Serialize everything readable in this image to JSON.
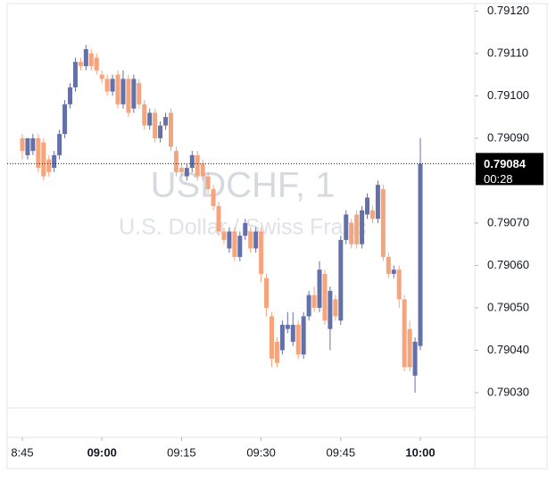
{
  "chart_data": {
    "type": "candlestick",
    "title": "USDCHF, 1",
    "subtitle": "U.S. Dollar / Swiss Franc",
    "categories": [
      "08:45",
      "08:46",
      "08:47",
      "08:48",
      "08:49",
      "08:50",
      "08:51",
      "08:52",
      "08:53",
      "08:54",
      "08:55",
      "08:56",
      "08:57",
      "08:58",
      "08:59",
      "09:00",
      "09:01",
      "09:02",
      "09:03",
      "09:04",
      "09:05",
      "09:06",
      "09:07",
      "09:08",
      "09:09",
      "09:10",
      "09:11",
      "09:12",
      "09:13",
      "09:14",
      "09:15",
      "09:16",
      "09:17",
      "09:18",
      "09:19",
      "09:20",
      "09:21",
      "09:22",
      "09:23",
      "09:24",
      "09:25",
      "09:26",
      "09:27",
      "09:28",
      "09:29",
      "09:30",
      "09:31",
      "09:32",
      "09:33",
      "09:34",
      "09:35",
      "09:36",
      "09:37",
      "09:38",
      "09:39",
      "09:40",
      "09:41",
      "09:42",
      "09:43",
      "09:44",
      "09:45",
      "09:46",
      "09:47",
      "09:48",
      "09:49",
      "09:50",
      "09:51",
      "09:52",
      "09:53",
      "09:54",
      "09:55",
      "09:56",
      "09:57",
      "09:58",
      "09:59",
      "10:00"
    ],
    "open": [
      0.7909,
      0.79086,
      0.79087,
      0.7909,
      0.79089,
      0.79085,
      0.79083,
      0.79086,
      0.79091,
      0.79098,
      0.79102,
      0.79108,
      0.79107,
      0.7911,
      0.79109,
      0.79105,
      0.79104,
      0.79101,
      0.79105,
      0.79098,
      0.79104,
      0.79097,
      0.79103,
      0.79098,
      0.79093,
      0.79096,
      0.7909,
      0.79093,
      0.79096,
      0.79087,
      0.79083,
      0.79081,
      0.79083,
      0.79086,
      0.79084,
      0.79081,
      0.79078,
      0.79074,
      0.79068,
      0.79064,
      0.79068,
      0.79062,
      0.79067,
      0.79068,
      0.79064,
      0.79068,
      0.79057,
      0.79048,
      0.79042,
      0.7904,
      0.79045,
      0.79042,
      0.79046,
      0.79039,
      0.79048,
      0.79053,
      0.7905,
      0.79058,
      0.79045,
      0.79052,
      0.79047,
      0.79066,
      0.7907,
      0.79072,
      0.79065,
      0.79072,
      0.79073,
      0.79071,
      0.79078,
      0.79062,
      0.79058,
      0.79059,
      0.79052,
      0.79045,
      0.79034,
      0.79041
    ],
    "high": [
      0.79091,
      0.7909,
      0.79091,
      0.79091,
      0.7909,
      0.79086,
      0.79087,
      0.79092,
      0.79099,
      0.79103,
      0.79109,
      0.79109,
      0.79112,
      0.79111,
      0.7911,
      0.79106,
      0.79105,
      0.79105,
      0.79106,
      0.79106,
      0.79105,
      0.79105,
      0.79104,
      0.79099,
      0.79097,
      0.79097,
      0.79094,
      0.79096,
      0.79097,
      0.79088,
      0.79084,
      0.79084,
      0.79087,
      0.79087,
      0.79085,
      0.79082,
      0.79079,
      0.79075,
      0.79069,
      0.79069,
      0.79069,
      0.79068,
      0.79071,
      0.79069,
      0.79069,
      0.79069,
      0.79058,
      0.79049,
      0.79043,
      0.79047,
      0.79049,
      0.79049,
      0.79047,
      0.79049,
      0.79054,
      0.79055,
      0.79061,
      0.79059,
      0.79055,
      0.79053,
      0.79067,
      0.79073,
      0.79071,
      0.79073,
      0.79074,
      0.79077,
      0.79074,
      0.7908,
      0.79079,
      0.79063,
      0.7906,
      0.7906,
      0.79053,
      0.79047,
      0.79043,
      0.7909
    ],
    "low": [
      0.79085,
      0.79085,
      0.79086,
      0.79082,
      0.7908,
      0.79081,
      0.79082,
      0.79085,
      0.7909,
      0.79097,
      0.79101,
      0.79106,
      0.79106,
      0.79106,
      0.79105,
      0.79103,
      0.791,
      0.791,
      0.79097,
      0.79097,
      0.79095,
      0.79096,
      0.79097,
      0.79092,
      0.79092,
      0.79089,
      0.79089,
      0.79092,
      0.79087,
      0.79081,
      0.79081,
      0.7908,
      0.79082,
      0.7908,
      0.7908,
      0.79077,
      0.79073,
      0.79067,
      0.79065,
      0.79063,
      0.79061,
      0.79061,
      0.79066,
      0.79063,
      0.79063,
      0.79056,
      0.79048,
      0.79036,
      0.79036,
      0.79039,
      0.79044,
      0.79041,
      0.79038,
      0.79038,
      0.79047,
      0.79049,
      0.79049,
      0.79046,
      0.7904,
      0.79047,
      0.79046,
      0.79065,
      0.79064,
      0.79064,
      0.79064,
      0.79071,
      0.7907,
      0.7907,
      0.79061,
      0.79057,
      0.79057,
      0.7905,
      0.79035,
      0.79035,
      0.7903,
      0.7904
    ],
    "close": [
      0.79087,
      0.7909,
      0.7909,
      0.79083,
      0.79081,
      0.79082,
      0.79086,
      0.79091,
      0.79098,
      0.79102,
      0.79108,
      0.79107,
      0.79111,
      0.79107,
      0.79106,
      0.79104,
      0.79101,
      0.79104,
      0.79098,
      0.79104,
      0.79096,
      0.79104,
      0.79098,
      0.79093,
      0.79096,
      0.7909,
      0.79093,
      0.79095,
      0.79088,
      0.79082,
      0.79082,
      0.79083,
      0.79086,
      0.79081,
      0.79081,
      0.79078,
      0.79074,
      0.79068,
      0.79066,
      0.79068,
      0.79062,
      0.79067,
      0.7907,
      0.79064,
      0.79068,
      0.79058,
      0.7905,
      0.79038,
      0.79037,
      0.79046,
      0.79046,
      0.79046,
      0.79039,
      0.79048,
      0.79053,
      0.7905,
      0.79059,
      0.79047,
      0.79054,
      0.79048,
      0.79066,
      0.79072,
      0.79065,
      0.79065,
      0.79073,
      0.79076,
      0.79071,
      0.79079,
      0.79062,
      0.79058,
      0.79059,
      0.79052,
      0.79036,
      0.79036,
      0.79042,
      0.79084
    ],
    "up_color": "#6471a8",
    "down_color": "#f5a47c",
    "ylim": [
      0.790264,
      0.791226
    ],
    "yticks": [
      {
        "value": 0.7903,
        "label": "0.79030"
      },
      {
        "value": 0.7904,
        "label": "0.79040"
      },
      {
        "value": 0.7905,
        "label": "0.79050"
      },
      {
        "value": 0.7906,
        "label": "0.79060"
      },
      {
        "value": 0.7907,
        "label": "0.79070"
      },
      {
        "value": 0.7908,
        "label": "0.79080"
      },
      {
        "value": 0.7909,
        "label": "0.79090"
      },
      {
        "value": 0.791,
        "label": "0.79100"
      },
      {
        "value": 0.7911,
        "label": "0.79110"
      },
      {
        "value": 0.7912,
        "label": "0.79120"
      }
    ],
    "xticks": [
      {
        "value": "08:45",
        "label": "8:45"
      },
      {
        "value": "09:00",
        "label": "09:00"
      },
      {
        "value": "09:15",
        "label": "09:15"
      },
      {
        "value": "09:30",
        "label": "09:30"
      },
      {
        "value": "09:45",
        "label": "09:45"
      },
      {
        "value": "10:00",
        "label": "10:00"
      }
    ],
    "last_price": {
      "value": 0.79084,
      "label": "0.79084"
    },
    "countdown": "00:28"
  }
}
